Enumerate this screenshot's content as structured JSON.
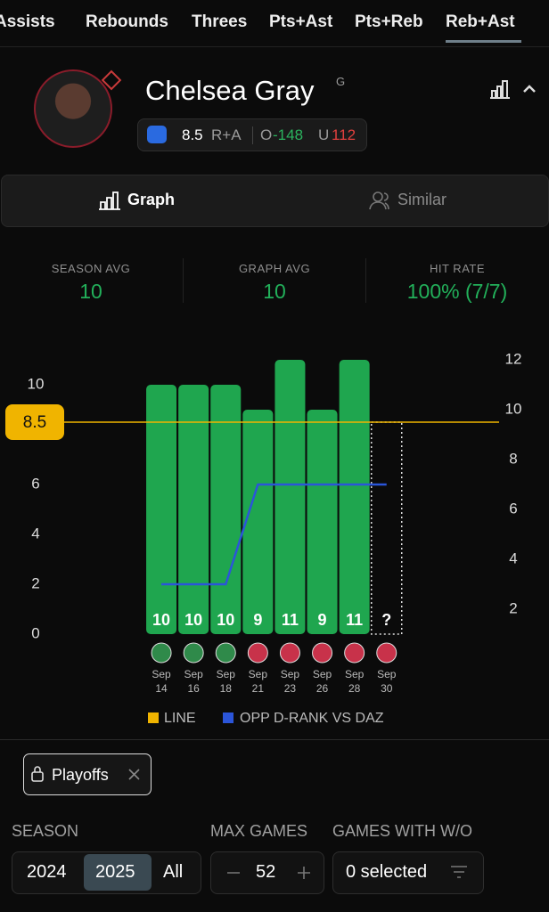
{
  "tabs": [
    "Assists",
    "Rebounds",
    "Threes",
    "Pts+Ast",
    "Pts+Reb",
    "Reb+Ast"
  ],
  "player": {
    "name": "Chelsea Gray",
    "position": "G",
    "line": "8.5",
    "market": "R+A",
    "over_label": "O",
    "over_odds": "-148",
    "under_label": "U",
    "under_odds": "112"
  },
  "view_tabs": [
    "Graph",
    "Similar"
  ],
  "stats": [
    {
      "label": "SEASON AVG",
      "value": "10"
    },
    {
      "label": "GRAPH AVG",
      "value": "10"
    },
    {
      "label": "HIT RATE",
      "value": "100% (7/7)"
    }
  ],
  "chart_data": {
    "type": "bar",
    "categories": [
      "Sep 14",
      "Sep 16",
      "Sep 18",
      "Sep 21",
      "Sep 23",
      "Sep 26",
      "Sep 28",
      "Sep 30"
    ],
    "values": [
      10,
      10,
      10,
      9,
      11,
      9,
      11,
      null
    ],
    "value_labels": [
      "10",
      "10",
      "10",
      "9",
      "11",
      "9",
      "11",
      "?"
    ],
    "color": "#1fa64f",
    "icon_colors": [
      "#2f8a4a",
      "#2f8a4a",
      "#2f8a4a",
      "#c8324a",
      "#c8324a",
      "#c8324a",
      "#c8324a",
      "#c8324a"
    ],
    "ylim": [
      0,
      12
    ],
    "yticks": [
      0,
      2,
      4,
      6,
      10
    ],
    "line": {
      "name": "LINE",
      "value": 8.5,
      "color": "#f0b400"
    },
    "series": [
      {
        "name": "OPP D-RANK VS DAZ",
        "color": "#2b55d9",
        "axis": "y2",
        "values": [
          3,
          3,
          3,
          7,
          7,
          7,
          7,
          7
        ]
      }
    ],
    "y2lim": [
      0,
      12
    ],
    "y2ticks": [
      2,
      4,
      6,
      8,
      10,
      12
    ]
  },
  "filters": {
    "chip": "Playoffs",
    "season_label": "SEASON",
    "seasons": [
      "2024",
      "2025",
      "All"
    ],
    "max_games_label": "MAX GAMES",
    "max_games": "52",
    "without_label": "GAMES WITH W/O",
    "without_value": "0 selected"
  }
}
